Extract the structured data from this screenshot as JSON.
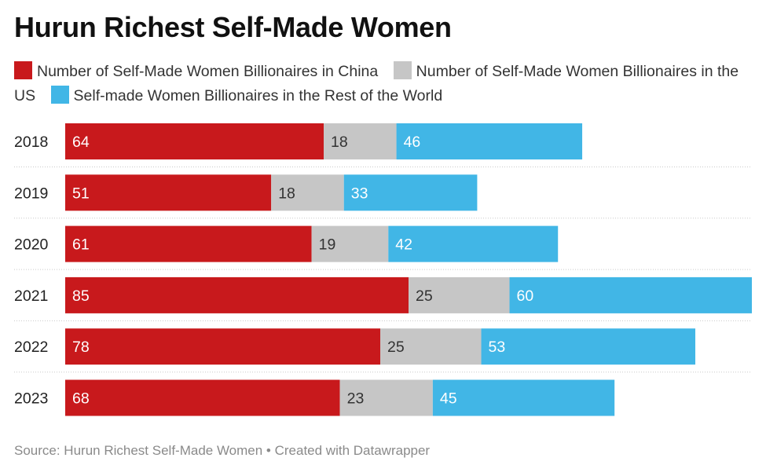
{
  "title": "Hurun Richest Self-Made Women",
  "legend": [
    {
      "label": "Number of Self-Made Women Billionaires in China",
      "color": "#c8191c"
    },
    {
      "label": "Number of Self-Made Women Billionaires in the US",
      "color": "#c6c6c6"
    },
    {
      "label": "Self-made Women Billionaires in the Rest of the World",
      "color": "#41b6e6"
    }
  ],
  "source": "Source: Hurun Richest Self-Made Women • Created with Datawrapper",
  "chart_data": {
    "type": "bar",
    "orientation": "horizontal",
    "stacked": true,
    "title": "Hurun Richest Self-Made Women",
    "categories": [
      "2018",
      "2019",
      "2020",
      "2021",
      "2022",
      "2023"
    ],
    "series": [
      {
        "name": "Number of Self-Made Women Billionaires in China",
        "color": "#c8191c",
        "label_color": "#ffffff",
        "values": [
          64,
          51,
          61,
          85,
          78,
          68
        ]
      },
      {
        "name": "Number of Self-Made Women Billionaires in the US",
        "color": "#c6c6c6",
        "label_color": "#333333",
        "values": [
          18,
          18,
          19,
          25,
          25,
          23
        ]
      },
      {
        "name": "Self-made Women Billionaires in the Rest of the World",
        "color": "#41b6e6",
        "label_color": "#ffffff",
        "values": [
          46,
          33,
          42,
          60,
          53,
          45
        ]
      }
    ],
    "xlim": [
      0,
      170
    ],
    "gridlines": "dotted between rows",
    "legend_position": "top"
  }
}
